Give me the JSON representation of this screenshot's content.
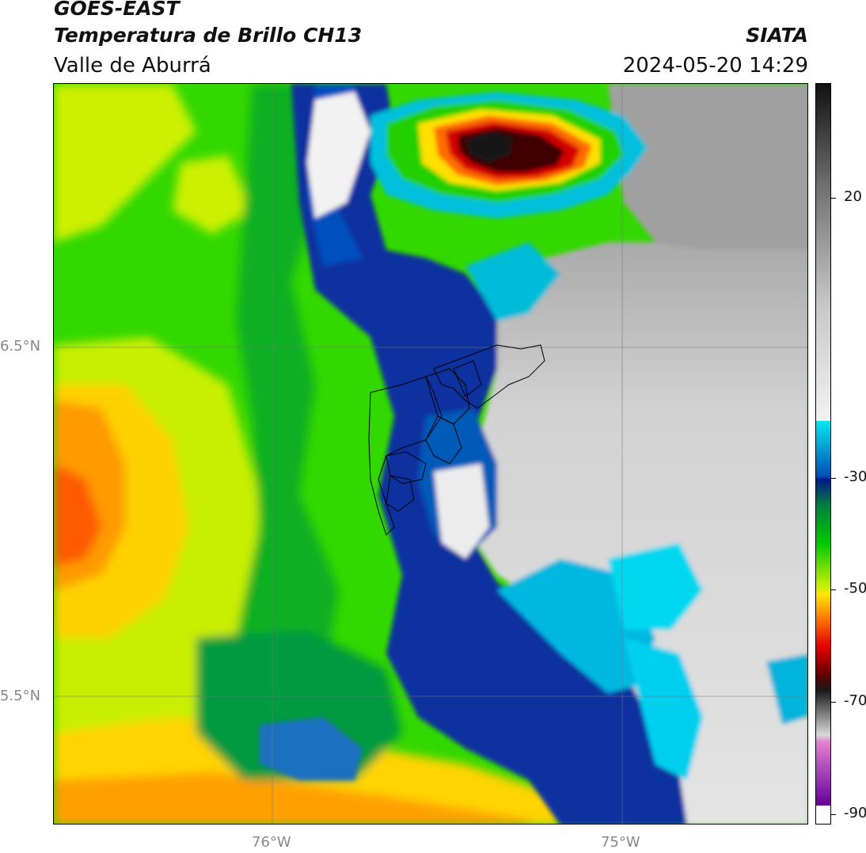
{
  "header": {
    "satellite": "GOES-EAST",
    "product": "Temperatura de Brillo CH13",
    "region": "Valle de Aburrá",
    "agency": "SIATA",
    "datetime": "2024-05-20 14:29"
  },
  "axes": {
    "lat_labels": [
      "6.5°N",
      "5.5°N"
    ],
    "lon_labels": [
      "76°W",
      "75°W"
    ]
  },
  "colorbar": {
    "ticks": [
      "20",
      "-30",
      "-50",
      "-70",
      "-90"
    ],
    "colors": {
      "warm_gray_top": "#111111",
      "light_gray": "#e6e6e6",
      "cyan": "#00e5ee",
      "navy": "#001a8a",
      "green": "#00c800",
      "yellow": "#ffe600",
      "orange": "#ff8000",
      "red": "#e60000",
      "dark": "#1a0000",
      "magenta": "#cc33cc",
      "purple": "#660099"
    }
  }
}
